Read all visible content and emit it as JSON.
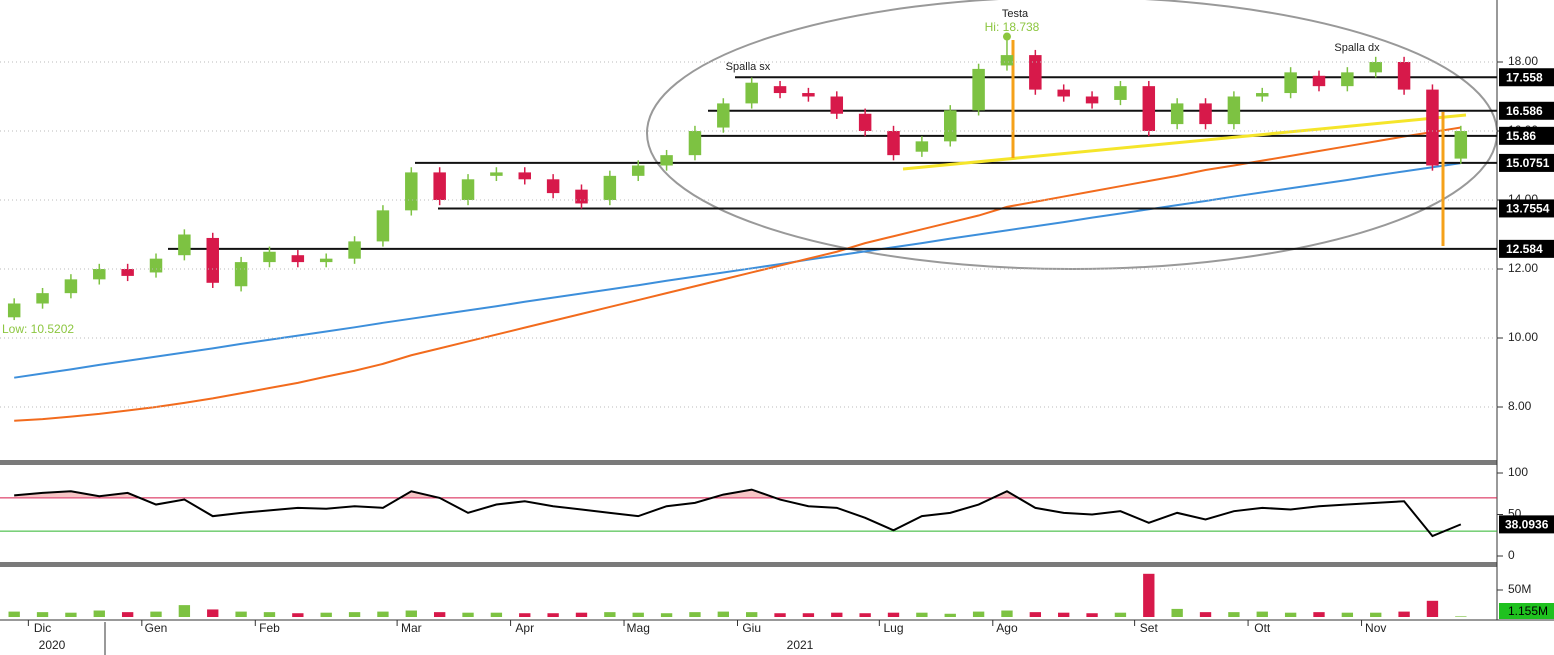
{
  "chart_data": {
    "type": "candlestick",
    "categories": [
      null,
      "Dic",
      null,
      null,
      null,
      "Gen",
      null,
      null,
      null,
      "Feb",
      null,
      null,
      null,
      null,
      "Mar",
      null,
      null,
      null,
      "Apr",
      null,
      null,
      null,
      "Mag",
      null,
      null,
      null,
      "Giu",
      null,
      null,
      null,
      null,
      "Lug",
      null,
      null,
      null,
      "Ago",
      null,
      null,
      null,
      null,
      "Set",
      null,
      null,
      null,
      "Ott",
      null,
      null,
      null,
      "Nov",
      null,
      null,
      null
    ],
    "years": [
      "2020",
      "2021"
    ],
    "ohlc": {
      "open": [
        10.6,
        11.0,
        11.3,
        11.7,
        12.0,
        11.9,
        12.4,
        12.9,
        11.5,
        12.2,
        12.4,
        12.2,
        12.3,
        12.8,
        13.7,
        14.8,
        14.0,
        14.7,
        14.8,
        14.6,
        14.3,
        14.0,
        14.7,
        15.0,
        15.3,
        16.1,
        16.8,
        17.3,
        17.1,
        17.0,
        16.5,
        16.0,
        15.4,
        15.7,
        16.6,
        17.9,
        18.2,
        17.2,
        17.0,
        16.9,
        17.3,
        16.2,
        16.8,
        16.2,
        17.0,
        17.1,
        17.6,
        17.3,
        17.7,
        18.0,
        17.2,
        15.2
      ],
      "high": [
        11.15,
        11.45,
        11.85,
        12.15,
        12.15,
        12.45,
        13.15,
        13.05,
        12.35,
        12.65,
        12.55,
        12.45,
        12.95,
        13.85,
        14.95,
        14.95,
        14.75,
        14.95,
        14.95,
        14.75,
        14.45,
        14.85,
        15.15,
        15.45,
        16.15,
        16.95,
        17.55,
        17.45,
        17.25,
        17.15,
        16.65,
        16.15,
        15.85,
        16.75,
        17.95,
        18.738,
        18.35,
        17.35,
        17.15,
        17.45,
        17.45,
        16.95,
        16.95,
        17.15,
        17.25,
        17.85,
        17.75,
        17.85,
        18.15,
        18.15,
        17.35,
        16.15
      ],
      "low": [
        10.5202,
        10.85,
        11.15,
        11.55,
        11.65,
        11.75,
        12.25,
        11.45,
        11.35,
        12.05,
        12.05,
        12.05,
        12.15,
        12.65,
        13.55,
        13.85,
        13.85,
        14.55,
        14.45,
        14.05,
        13.75,
        13.85,
        14.55,
        14.85,
        15.15,
        15.95,
        16.65,
        16.95,
        16.85,
        16.35,
        15.85,
        15.15,
        15.25,
        15.55,
        16.45,
        17.75,
        17.05,
        16.85,
        16.65,
        16.75,
        15.85,
        16.05,
        16.05,
        16.05,
        16.85,
        16.95,
        17.15,
        17.15,
        17.55,
        17.05,
        14.85,
        15.05
      ],
      "close": [
        11.0,
        11.3,
        11.7,
        12.0,
        11.8,
        12.3,
        13.0,
        11.6,
        12.2,
        12.5,
        12.2,
        12.3,
        12.8,
        13.7,
        14.8,
        14.0,
        14.6,
        14.8,
        14.6,
        14.2,
        13.9,
        14.7,
        15.0,
        15.3,
        16.0,
        16.8,
        17.4,
        17.1,
        17.0,
        16.5,
        16.0,
        15.3,
        15.7,
        16.6,
        17.8,
        18.2,
        17.2,
        17.0,
        16.8,
        17.3,
        16.0,
        16.8,
        16.2,
        17.0,
        17.1,
        17.7,
        17.3,
        17.7,
        18.0,
        17.2,
        15.0,
        16.0
      ]
    },
    "up_color": "#7dc242",
    "down_color": "#d7194a",
    "ylim": [
      6.464,
      19.797
    ],
    "yticks": [
      {
        "value": 8,
        "label": "8.00"
      },
      {
        "value": 10,
        "label": "10.00"
      },
      {
        "value": 12,
        "label": "12.00"
      },
      {
        "value": 14,
        "label": "14.00"
      },
      {
        "value": 16,
        "label": "16.00"
      },
      {
        "value": 18,
        "label": "18.00"
      }
    ],
    "overlays": [
      {
        "color": "#3d8fdb",
        "values": [
          8.85,
          8.97,
          9.09,
          9.22,
          9.34,
          9.46,
          9.58,
          9.7,
          9.83,
          9.95,
          10.07,
          10.19,
          10.31,
          10.44,
          10.56,
          10.68,
          10.8,
          10.92,
          11.05,
          11.17,
          11.29,
          11.41,
          11.53,
          11.66,
          11.78,
          11.9,
          12.02,
          12.14,
          12.27,
          12.39,
          12.51,
          12.63,
          12.75,
          12.88,
          13.0,
          13.12,
          13.24,
          13.36,
          13.49,
          13.61,
          13.73,
          13.85,
          13.97,
          14.1,
          14.22,
          14.34,
          14.46,
          14.58,
          14.71,
          14.83,
          14.95,
          15.07
        ]
      },
      {
        "color": "#f26b1d",
        "values": [
          7.6,
          7.65,
          7.72,
          7.8,
          7.9,
          8.0,
          8.12,
          8.25,
          8.4,
          8.55,
          8.7,
          8.88,
          9.05,
          9.25,
          9.5,
          9.7,
          9.9,
          10.1,
          10.3,
          10.5,
          10.7,
          10.9,
          11.1,
          11.3,
          11.5,
          11.7,
          11.9,
          12.1,
          12.3,
          12.5,
          12.75,
          12.95,
          13.15,
          13.35,
          13.55,
          13.8,
          13.95,
          14.1,
          14.25,
          14.4,
          14.55,
          14.7,
          14.87,
          15.0,
          15.14,
          15.28,
          15.42,
          15.56,
          15.7,
          15.84,
          15.97,
          16.1
        ]
      }
    ],
    "levels": [
      17.558,
      16.586,
      15.86,
      15.0751,
      13.7554,
      12.584
    ],
    "annotations": [
      "Spalla sx",
      "Testa",
      "Spalla dx"
    ],
    "hi_label": "Hi: 18.738",
    "low_label": "Low: 10.5202",
    "label_color": "#8cc63f",
    "rsi": {
      "values": [
        73,
        76,
        78,
        72,
        76,
        62,
        68,
        48,
        52,
        55,
        58,
        57,
        60,
        58,
        78,
        70,
        52,
        62,
        66,
        60,
        56,
        52,
        48,
        60,
        64,
        74,
        80,
        68,
        60,
        58,
        46,
        31,
        48,
        52,
        62,
        78,
        58,
        52,
        50,
        54,
        40,
        52,
        44,
        54,
        58,
        56,
        60,
        62,
        64,
        66,
        24,
        38.0936
      ],
      "ylim": [
        0,
        100
      ],
      "yticks": [
        0,
        50,
        100
      ],
      "bands": [
        {
          "value": 70,
          "color": "#d7194a"
        },
        {
          "value": 30,
          "color": "#2bb52b"
        }
      ]
    },
    "volume": {
      "values": [
        10000000,
        9000000,
        8000000,
        12000000,
        9000000,
        10000000,
        22000000,
        14000000,
        10000000,
        9000000,
        7000000,
        8000000,
        9000000,
        10000000,
        12000000,
        9000000,
        8000000,
        8000000,
        7000000,
        7000000,
        8000000,
        9000000,
        8000000,
        7000000,
        9000000,
        10000000,
        9000000,
        7000000,
        7000000,
        8000000,
        7000000,
        8000000,
        8000000,
        6000000,
        10000000,
        12000000,
        9000000,
        8000000,
        7000000,
        8000000,
        80000000,
        15000000,
        9000000,
        9000000,
        10000000,
        8000000,
        9000000,
        8000000,
        8000000,
        10000000,
        30000000,
        1155000
      ],
      "last_value_label": "1.155M",
      "ylim": [
        0,
        90000000
      ],
      "yticks": [
        {
          "value": 50000000,
          "label": "50M"
        }
      ]
    }
  }
}
